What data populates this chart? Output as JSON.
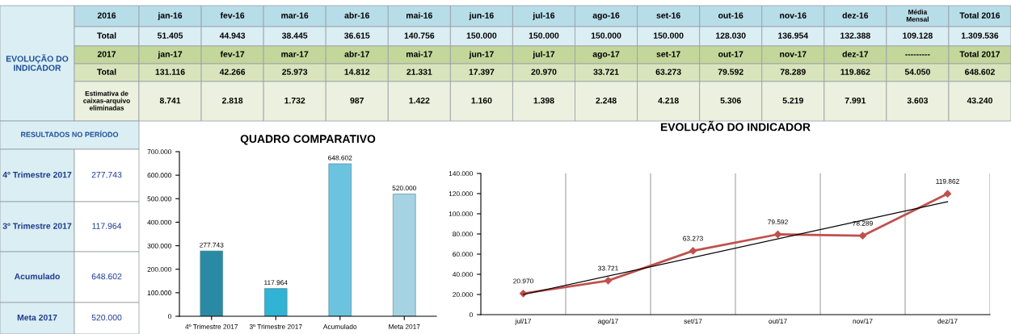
{
  "chart_data": [
    {
      "type": "other",
      "annotations": [
        "EVOLUÇÃO DO\nINDICADOR",
        "2016",
        "jan-16",
        "fev-16",
        "mar-16",
        "abr-16",
        "mai-16",
        "jun-16",
        "jul-16",
        "ago-16",
        "set-16",
        "out-16",
        "nov-16",
        "dez-16",
        "Média\nMensal",
        "Total 2016",
        "Total",
        "51.405",
        "44.943",
        "38.445",
        "36.615",
        "140.756",
        "150.000",
        "150.000",
        "150.000",
        "150.000",
        "128.030",
        "136.954",
        "132.388",
        "109.128",
        "1.309.536",
        "2017",
        "jan-17",
        "fev-17",
        "mar-17",
        "abr-17",
        "mai-17",
        "jun-17",
        "jul-17",
        "ago-17",
        "set-17",
        "out-17",
        "nov-17",
        "dez-17",
        "---------",
        "Total 2017",
        "Total",
        "131.116",
        "42.266",
        "25.973",
        "14.812",
        "21.331",
        "17.397",
        "20.970",
        "33.721",
        "63.273",
        "79.592",
        "78.289",
        "119.862",
        "54.050",
        "648.602",
        "Estimativa de\ncaixas-arquivo\neliminadas",
        "8.741",
        "2.818",
        "1.732",
        "987",
        "1.422",
        "1.160",
        "1.398",
        "2.248",
        "4.218",
        "5.306",
        "5.219",
        "7.991",
        "3.603",
        "43.240"
      ]
    },
    {
      "type": "other",
      "annotations": [
        "RESULTADOS NO PERÍODO",
        "4º Trimestre 2017",
        "277.743",
        "3º Trimestre 2017",
        "117.964",
        "Acumulado",
        "648.602",
        "Meta 2017",
        "520.000"
      ]
    },
    {
      "type": "bar",
      "title": "QUADRO COMPARATIVO",
      "categories": [
        "4º Trimestre 2017",
        "3º Trimestre 2017",
        "Acumulado",
        "Meta 2017"
      ],
      "values": [
        277743,
        117964,
        648602,
        520000
      ],
      "colors": [
        "#2b8aa3",
        "#31b3d3",
        "#6cc3e0",
        "#a6d3e3"
      ],
      "value_labels": [
        "277.743",
        "117.964",
        "648.602",
        "520.000"
      ],
      "ylim": [
        0,
        700000
      ],
      "yticks": [
        0,
        {
          "value": 100000,
          "label": "100.000"
        },
        {
          "value": 200000,
          "label": "200.000"
        },
        {
          "value": 300000,
          "label": "300.000"
        },
        {
          "value": 400000,
          "label": "400.000"
        },
        {
          "value": 500000,
          "label": "500.000"
        },
        {
          "value": 600000,
          "label": "600.000"
        },
        {
          "value": 700000,
          "label": "700.000"
        }
      ],
      "grid": false
    },
    {
      "type": "line",
      "title": "EVOLUÇÃO DO INDICADOR",
      "categories": [
        "jul/17",
        "ago/17",
        "set/17",
        "out/17",
        "nov/17",
        "dez/17"
      ],
      "series": [
        {
          "color": "#c0504d",
          "marker": "diamond",
          "values": [
            20970,
            33721,
            63273,
            79592,
            78289,
            119862
          ],
          "value_labels": [
            "20.970",
            "33.721",
            "63.273",
            "79.592",
            "78.289",
            "119.862"
          ]
        },
        {
          "type": "line",
          "color": "#000000",
          "marker": "none",
          "x": [
            "jul/17",
            "dez/17"
          ],
          "values": [
            19900,
            112000
          ]
        }
      ],
      "ylim": [
        0,
        140000
      ],
      "yticks": [
        0,
        {
          "value": 20000,
          "label": "20.000"
        },
        {
          "value": 40000,
          "label": "40.000"
        },
        {
          "value": 60000,
          "label": "60.000"
        },
        {
          "value": 80000,
          "label": "80.000"
        },
        {
          "value": 100000,
          "label": "100.000"
        },
        {
          "value": 120000,
          "label": "120.000"
        },
        {
          "value": 140000,
          "label": "140.000"
        }
      ],
      "grid": "x"
    }
  ]
}
